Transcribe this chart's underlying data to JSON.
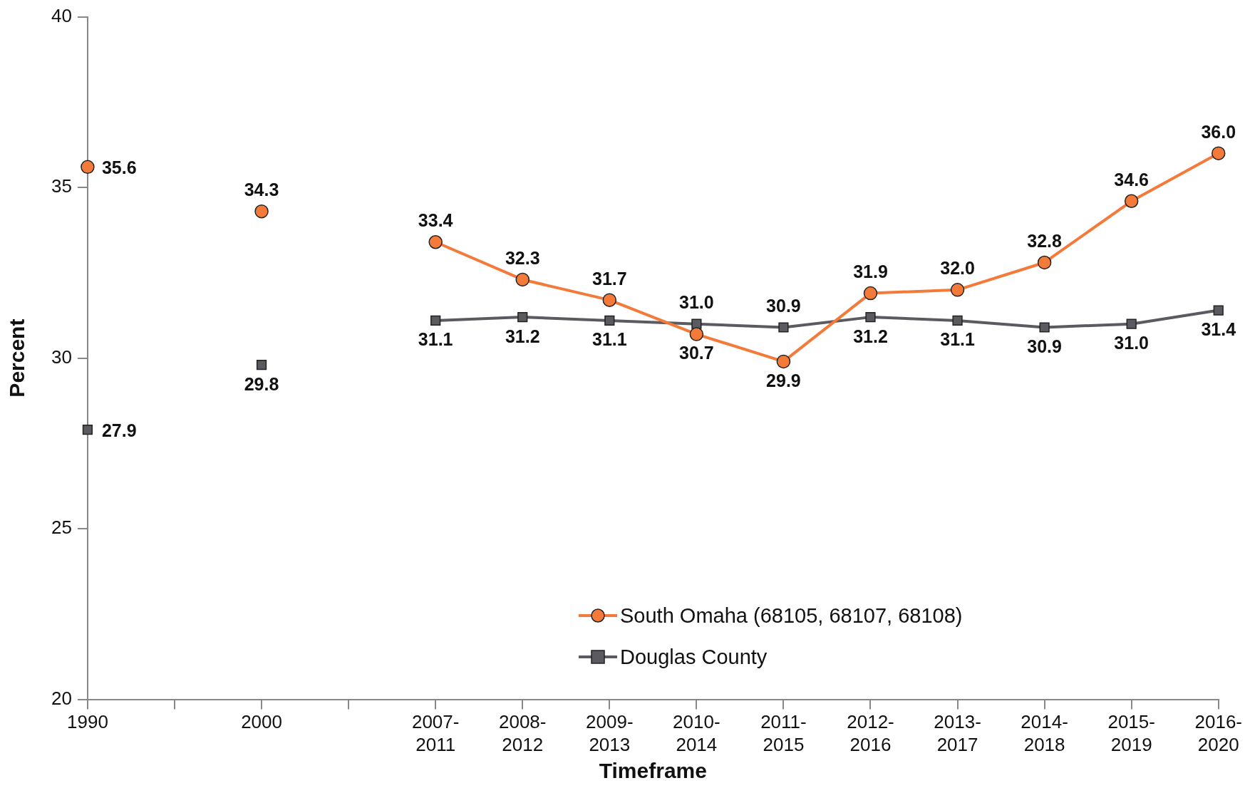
{
  "chart_data": {
    "type": "line",
    "xlabel": "Timeframe",
    "ylabel": "Percent",
    "categories": [
      "1990",
      null,
      "2000",
      null,
      "2007-2011",
      "2008-2012",
      "2009-2013",
      "2010-2014",
      "2011-2015",
      "2012-2016",
      "2013-2017",
      "2014-2018",
      "2015-2019",
      "2016-2020"
    ],
    "series": [
      {
        "name": "South Omaha (68105, 68107, 68108)",
        "color": "#f47a3a",
        "marker": "circle",
        "values": [
          35.6,
          null,
          34.3,
          null,
          33.4,
          32.3,
          31.7,
          30.7,
          29.9,
          31.9,
          32.0,
          32.8,
          34.6,
          36.0
        ],
        "value_labels": [
          "35.6",
          null,
          "34.3",
          null,
          "33.4",
          "32.3",
          "31.7",
          "30.7",
          "29.9",
          "31.9",
          "32.0",
          "32.8",
          "34.6",
          "36.0"
        ]
      },
      {
        "name": "Douglas County",
        "color": "#5a5a60",
        "marker": "square",
        "values": [
          27.9,
          null,
          29.8,
          null,
          31.1,
          31.2,
          31.1,
          31.0,
          30.9,
          31.2,
          31.1,
          30.9,
          31.0,
          31.4
        ],
        "value_labels": [
          "27.9",
          null,
          "29.8",
          null,
          "31.1",
          "31.2",
          "31.1",
          "31.0",
          "30.9",
          "31.2",
          "31.1",
          "30.9",
          "31.0",
          "31.4"
        ]
      }
    ],
    "ylim": [
      20,
      40
    ],
    "yticks": [
      20,
      25,
      30,
      35,
      40
    ],
    "grid": false,
    "legend": "bottom"
  }
}
